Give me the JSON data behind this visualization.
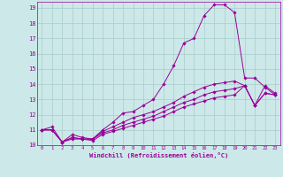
{
  "xlabel": "Windchill (Refroidissement éolien,°C)",
  "xlim": [
    -0.5,
    23.5
  ],
  "ylim": [
    10,
    19.4
  ],
  "xticks": [
    0,
    1,
    2,
    3,
    4,
    5,
    6,
    7,
    8,
    9,
    10,
    11,
    12,
    13,
    14,
    15,
    16,
    17,
    18,
    19,
    20,
    21,
    22,
    23
  ],
  "yticks": [
    10,
    11,
    12,
    13,
    14,
    15,
    16,
    17,
    18,
    19
  ],
  "bg_color": "#cce8e8",
  "line_color": "#990099",
  "grid_color": "#aacccc",
  "lines": [
    {
      "x": [
        0,
        1,
        2,
        3,
        4,
        5,
        6,
        7,
        8,
        9,
        10,
        11,
        12,
        13,
        14,
        15,
        16,
        17,
        18,
        19,
        20,
        21,
        22,
        23
      ],
      "y": [
        11.0,
        11.2,
        10.2,
        10.7,
        10.5,
        10.4,
        11.0,
        11.5,
        12.1,
        12.2,
        12.6,
        13.0,
        14.0,
        15.2,
        16.7,
        17.0,
        18.5,
        19.2,
        19.2,
        18.7,
        14.4,
        14.4,
        13.8,
        13.3
      ]
    },
    {
      "x": [
        0,
        1,
        2,
        3,
        4,
        5,
        6,
        7,
        8,
        9,
        10,
        11,
        12,
        13,
        14,
        15,
        16,
        17,
        18,
        19,
        20,
        21,
        22,
        23
      ],
      "y": [
        11.0,
        11.0,
        10.2,
        10.5,
        10.4,
        10.4,
        10.9,
        11.2,
        11.5,
        11.8,
        12.0,
        12.2,
        12.5,
        12.8,
        13.2,
        13.5,
        13.8,
        14.0,
        14.1,
        14.2,
        13.9,
        12.6,
        13.9,
        13.4
      ]
    },
    {
      "x": [
        0,
        1,
        2,
        3,
        4,
        5,
        6,
        7,
        8,
        9,
        10,
        11,
        12,
        13,
        14,
        15,
        16,
        17,
        18,
        19,
        20,
        21,
        22,
        23
      ],
      "y": [
        11.0,
        11.0,
        10.2,
        10.5,
        10.4,
        10.4,
        10.8,
        11.0,
        11.3,
        11.5,
        11.7,
        11.9,
        12.2,
        12.5,
        12.8,
        13.0,
        13.3,
        13.5,
        13.6,
        13.7,
        13.9,
        12.6,
        13.4,
        13.3
      ]
    },
    {
      "x": [
        0,
        1,
        2,
        3,
        4,
        5,
        6,
        7,
        8,
        9,
        10,
        11,
        12,
        13,
        14,
        15,
        16,
        17,
        18,
        19,
        20,
        21,
        22,
        23
      ],
      "y": [
        11.0,
        11.0,
        10.2,
        10.4,
        10.4,
        10.3,
        10.7,
        10.9,
        11.1,
        11.3,
        11.5,
        11.7,
        11.9,
        12.2,
        12.5,
        12.7,
        12.9,
        13.1,
        13.2,
        13.3,
        13.9,
        12.6,
        13.4,
        13.3
      ]
    }
  ]
}
